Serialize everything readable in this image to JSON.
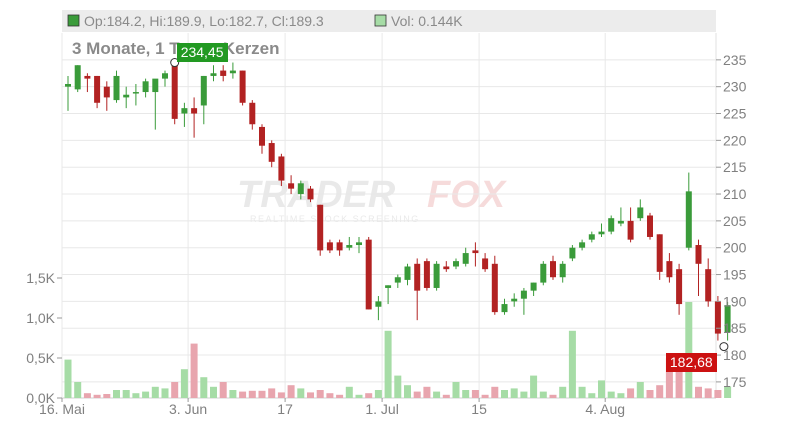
{
  "header": {
    "ohlc_text": "Op:184.2, Hi:189.9, Lo:182.7, Cl:189.3",
    "vol_text": "Vol: 0.144K",
    "ohlc_swatch_color": "#3a9b3a",
    "vol_swatch_color": "#a6dca6"
  },
  "subtitle": "3 Monate, 1 Tages-Kerzen",
  "watermark": {
    "text_gray": "TRADER",
    "text_red": "FOX",
    "tagline": "REALTIME STOCK SCREENING"
  },
  "max_label": "234,45",
  "min_label": "182,68",
  "colors": {
    "up": "#3a9b3a",
    "down": "#b22222",
    "vol_up": "#a6dca6",
    "vol_down": "#e8a5ae",
    "max_box": "#229922",
    "min_box": "#cc1111",
    "axis_text": "#808080",
    "grid": "#e8e8e8"
  },
  "chart_data": {
    "type": "candlestick",
    "price_axis": {
      "ticks": [
        "175",
        "180",
        "185",
        "190",
        "195",
        "200",
        "205",
        "210",
        "215",
        "220",
        "225",
        "230",
        "235"
      ],
      "range": [
        172,
        240
      ]
    },
    "volume_axis": {
      "ticks": [
        "0,0K",
        "0,5K",
        "1,0K",
        "1,5K"
      ],
      "range": [
        0,
        1.5
      ]
    },
    "x_ticks": [
      "16. Mai",
      "3. Jun",
      "17",
      "1. Jul",
      "15",
      "4. Aug"
    ],
    "x_tick_index": [
      0,
      13,
      23,
      33,
      43,
      56
    ],
    "grid": true,
    "candles": [
      {
        "date": "16. Mai",
        "o": 230.0,
        "h": 232.0,
        "l": 225.5,
        "c": 230.5,
        "v": 0.48
      },
      {
        "o": 229.5,
        "h": 234.0,
        "l": 229.0,
        "c": 234.0,
        "v": 0.2
      },
      {
        "o": 232.0,
        "h": 232.5,
        "l": 229.0,
        "c": 231.5,
        "v": 0.06
      },
      {
        "o": 232.0,
        "h": 232.0,
        "l": 226.0,
        "c": 227.0,
        "v": 0.04
      },
      {
        "o": 230.0,
        "h": 231.0,
        "l": 225.5,
        "c": 228.0,
        "v": 0.05
      },
      {
        "o": 227.5,
        "h": 233.0,
        "l": 227.0,
        "c": 232.0,
        "v": 0.1
      },
      {
        "o": 228.0,
        "h": 230.0,
        "l": 226.0,
        "c": 228.5,
        "v": 0.1
      },
      {
        "o": 229.0,
        "h": 230.5,
        "l": 226.5,
        "c": 229.0,
        "v": 0.06
      },
      {
        "o": 229.0,
        "h": 231.5,
        "l": 228.0,
        "c": 231.0,
        "v": 0.08
      },
      {
        "o": 229.0,
        "h": 231.0,
        "l": 222.0,
        "c": 231.5,
        "v": 0.14
      },
      {
        "o": 231.5,
        "h": 233.0,
        "l": 230.0,
        "c": 232.5,
        "v": 0.12
      },
      {
        "o": 234.5,
        "h": 234.5,
        "l": 223.0,
        "c": 224.0,
        "v": 0.2
      },
      {
        "o": 225.0,
        "h": 227.0,
        "l": 222.5,
        "c": 226.0,
        "v": 0.36
      },
      {
        "date": "3. Jun",
        "o": 226.0,
        "h": 228.0,
        "l": 220.5,
        "c": 225.0,
        "v": 0.68
      },
      {
        "o": 226.5,
        "h": 232.0,
        "l": 223.0,
        "c": 232.0,
        "v": 0.26
      },
      {
        "o": 232.0,
        "h": 234.0,
        "l": 231.0,
        "c": 232.5,
        "v": 0.14
      },
      {
        "o": 233.0,
        "h": 234.0,
        "l": 231.0,
        "c": 232.0,
        "v": 0.2
      },
      {
        "o": 232.5,
        "h": 234.5,
        "l": 231.5,
        "c": 233.0,
        "v": 0.1
      },
      {
        "o": 233.0,
        "h": 233.0,
        "l": 226.5,
        "c": 227.0,
        "v": 0.08
      },
      {
        "o": 227.0,
        "h": 227.5,
        "l": 222.0,
        "c": 223.0,
        "v": 0.09
      },
      {
        "o": 222.5,
        "h": 223.0,
        "l": 217.5,
        "c": 219.0,
        "v": 0.09
      },
      {
        "o": 219.5,
        "h": 220.0,
        "l": 215.0,
        "c": 216.0,
        "v": 0.12
      },
      {
        "o": 217.0,
        "h": 217.5,
        "l": 211.5,
        "c": 212.5,
        "v": 0.07
      },
      {
        "date": "17",
        "o": 212.0,
        "h": 213.5,
        "l": 210.0,
        "c": 211.0,
        "v": 0.16
      },
      {
        "o": 210.0,
        "h": 212.5,
        "l": 209.0,
        "c": 212.0,
        "v": 0.12
      },
      {
        "o": 211.0,
        "h": 211.5,
        "l": 208.5,
        "c": 209.0,
        "v": 0.07
      },
      {
        "o": 208.0,
        "h": 208.0,
        "l": 198.5,
        "c": 199.5,
        "v": 0.1
      },
      {
        "o": 201.0,
        "h": 201.5,
        "l": 199.0,
        "c": 199.5,
        "v": 0.06
      },
      {
        "o": 201.0,
        "h": 201.5,
        "l": 198.5,
        "c": 199.5,
        "v": 0.04
      },
      {
        "o": 200.0,
        "h": 202.0,
        "l": 199.5,
        "c": 200.5,
        "v": 0.14
      },
      {
        "o": 200.5,
        "h": 202.0,
        "l": 199.0,
        "c": 201.0,
        "v": 0.04
      },
      {
        "o": 201.5,
        "h": 202.0,
        "l": 188.5,
        "c": 188.5,
        "v": 0.06
      },
      {
        "o": 189.0,
        "h": 191.0,
        "l": 186.5,
        "c": 190.0,
        "v": 0.1
      },
      {
        "date": "1. Jul",
        "o": 192.5,
        "h": 193.0,
        "l": 189.5,
        "c": 193.0,
        "v": 0.84
      },
      {
        "o": 193.5,
        "h": 195.0,
        "l": 192.5,
        "c": 194.5,
        "v": 0.28
      },
      {
        "o": 194.0,
        "h": 197.0,
        "l": 193.0,
        "c": 196.5,
        "v": 0.16
      },
      {
        "o": 197.0,
        "h": 198.0,
        "l": 186.5,
        "c": 192.0,
        "v": 0.08
      },
      {
        "o": 197.5,
        "h": 198.0,
        "l": 192.0,
        "c": 192.5,
        "v": 0.14
      },
      {
        "o": 192.5,
        "h": 197.5,
        "l": 192.0,
        "c": 197.0,
        "v": 0.08
      },
      {
        "o": 196.5,
        "h": 197.5,
        "l": 195.5,
        "c": 196.0,
        "v": 0.04
      },
      {
        "o": 196.5,
        "h": 198.0,
        "l": 196.0,
        "c": 197.5,
        "v": 0.2
      },
      {
        "o": 197.0,
        "h": 200.0,
        "l": 196.5,
        "c": 199.0,
        "v": 0.1
      },
      {
        "o": 199.5,
        "h": 201.0,
        "l": 196.5,
        "c": 199.0,
        "v": 0.1
      },
      {
        "date": "15",
        "o": 198.0,
        "h": 199.0,
        "l": 195.5,
        "c": 196.0,
        "v": 0.04
      },
      {
        "o": 197.0,
        "h": 198.5,
        "l": 187.5,
        "c": 188.0,
        "v": 0.14
      },
      {
        "o": 188.0,
        "h": 190.5,
        "l": 187.5,
        "c": 189.5,
        "v": 0.1
      },
      {
        "o": 190.0,
        "h": 191.5,
        "l": 189.0,
        "c": 190.5,
        "v": 0.12
      },
      {
        "o": 190.5,
        "h": 192.5,
        "l": 187.5,
        "c": 192.0,
        "v": 0.08
      },
      {
        "o": 192.0,
        "h": 193.5,
        "l": 191.0,
        "c": 193.5,
        "v": 0.28
      },
      {
        "o": 193.5,
        "h": 197.5,
        "l": 193.0,
        "c": 197.0,
        "v": 0.08
      },
      {
        "o": 197.5,
        "h": 198.5,
        "l": 194.0,
        "c": 194.5,
        "v": 0.04
      },
      {
        "o": 194.5,
        "h": 197.5,
        "l": 193.5,
        "c": 197.0,
        "v": 0.14
      },
      {
        "o": 198.0,
        "h": 200.5,
        "l": 197.5,
        "c": 200.0,
        "v": 0.84
      },
      {
        "o": 200.0,
        "h": 201.5,
        "l": 199.5,
        "c": 201.0,
        "v": 0.14
      },
      {
        "o": 201.5,
        "h": 203.0,
        "l": 201.0,
        "c": 202.5,
        "v": 0.06
      },
      {
        "o": 202.5,
        "h": 204.5,
        "l": 202.0,
        "c": 203.0,
        "v": 0.22
      },
      {
        "date": "4. Aug",
        "o": 203.0,
        "h": 206.0,
        "l": 202.5,
        "c": 205.5,
        "v": 0.08
      },
      {
        "o": 204.5,
        "h": 207.5,
        "l": 204.0,
        "c": 205.0,
        "v": 0.06
      },
      {
        "o": 205.0,
        "h": 207.5,
        "l": 201.0,
        "c": 201.5,
        "v": 0.12
      },
      {
        "o": 205.5,
        "h": 209.0,
        "l": 205.0,
        "c": 207.5,
        "v": 0.2
      },
      {
        "o": 206.0,
        "h": 206.5,
        "l": 201.5,
        "c": 202.0,
        "v": 0.1
      },
      {
        "o": 202.5,
        "h": 202.5,
        "l": 194.0,
        "c": 195.5,
        "v": 0.16
      },
      {
        "o": 197.5,
        "h": 199.0,
        "l": 193.5,
        "c": 194.5,
        "v": 0.5
      },
      {
        "o": 196.0,
        "h": 197.0,
        "l": 187.5,
        "c": 189.5,
        "v": 0.4
      },
      {
        "o": 200.0,
        "h": 214.0,
        "l": 199.5,
        "c": 210.5,
        "v": 1.2
      },
      {
        "o": 200.5,
        "h": 201.5,
        "l": 191.0,
        "c": 197.0,
        "v": 0.14
      },
      {
        "o": 196.0,
        "h": 198.0,
        "l": 189.0,
        "c": 190.0,
        "v": 0.12
      },
      {
        "o": 190.0,
        "h": 191.0,
        "l": 182.7,
        "c": 184.0,
        "v": 0.1
      },
      {
        "o": 184.2,
        "h": 189.9,
        "l": 182.7,
        "c": 189.3,
        "v": 0.144
      }
    ]
  }
}
